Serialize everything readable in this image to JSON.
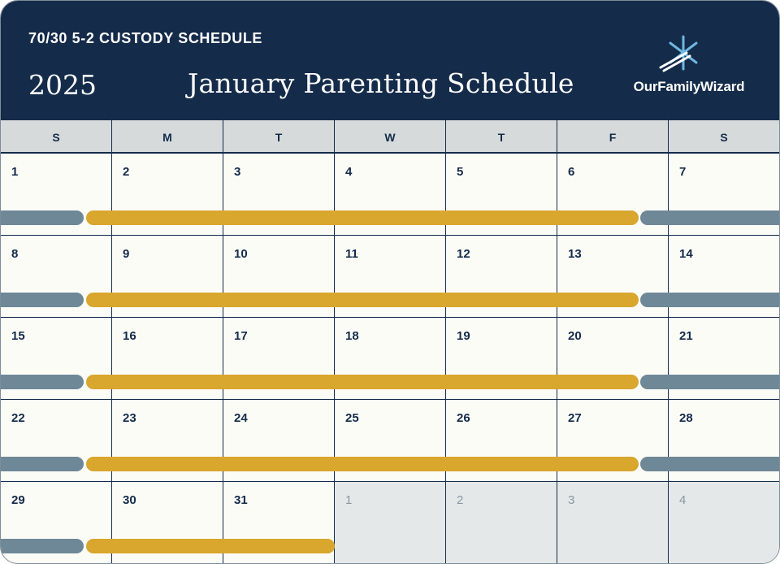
{
  "header": {
    "subtitle": "70/30 5-2 CUSTODY SCHEDULE",
    "year": "2025",
    "title": "January Parenting Schedule",
    "logo_text": "OurFamilyWizard"
  },
  "weekdays": [
    "S",
    "M",
    "T",
    "W",
    "T",
    "F",
    "S"
  ],
  "weeks": [
    {
      "dates": [
        "1",
        "2",
        "3",
        "4",
        "5",
        "6",
        "7"
      ],
      "other_month": [
        false,
        false,
        false,
        false,
        false,
        false,
        false
      ]
    },
    {
      "dates": [
        "8",
        "9",
        "10",
        "11",
        "12",
        "13",
        "14"
      ],
      "other_month": [
        false,
        false,
        false,
        false,
        false,
        false,
        false
      ]
    },
    {
      "dates": [
        "15",
        "16",
        "17",
        "18",
        "19",
        "20",
        "21"
      ],
      "other_month": [
        false,
        false,
        false,
        false,
        false,
        false,
        false
      ]
    },
    {
      "dates": [
        "22",
        "23",
        "24",
        "25",
        "26",
        "27",
        "28"
      ],
      "other_month": [
        false,
        false,
        false,
        false,
        false,
        false,
        false
      ]
    },
    {
      "dates": [
        "29",
        "30",
        "31",
        "1",
        "2",
        "3",
        "4"
      ],
      "other_month": [
        false,
        false,
        false,
        true,
        true,
        true,
        true
      ]
    }
  ],
  "colors": {
    "navy": "#142b4a",
    "parent_a_gray": "#6e8897",
    "parent_b_gold": "#d9a62e",
    "logo_accent": "#6fb8e0"
  }
}
